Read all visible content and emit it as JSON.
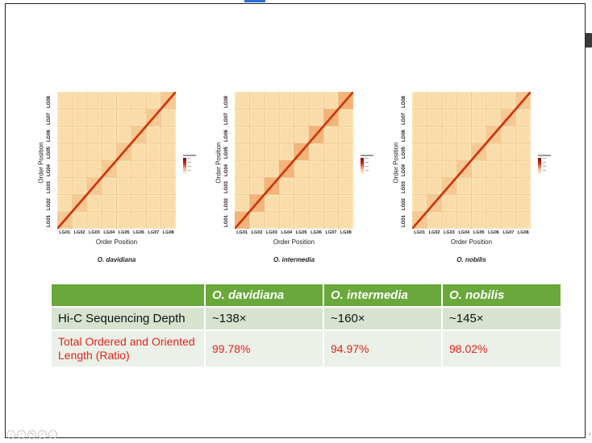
{
  "window": {
    "title": ""
  },
  "panels": [
    {
      "ylabel": "Order Position",
      "xlabel": "Order Position",
      "species": "O. davidiana",
      "ticks": [
        "LG01",
        "LG02",
        "LG03",
        "LG04",
        "LG05",
        "LG06",
        "LG07",
        "LG08"
      ]
    },
    {
      "ylabel": "Order Position",
      "xlabel": "Order Position",
      "species": "O. intermedia",
      "ticks": [
        "LG01",
        "LG02",
        "LG03",
        "LG04",
        "LG05",
        "LG06",
        "LG07",
        "LG08"
      ]
    },
    {
      "ylabel": "Order Position",
      "xlabel": "Order Position",
      "species": "O. nobilis",
      "ticks": [
        "LG01",
        "LG02",
        "LG03",
        "LG04",
        "LG05",
        "LG06",
        "LG07",
        "LG08"
      ]
    }
  ],
  "table": {
    "headers": [
      "",
      "O. davidiana",
      "O. intermedia",
      "O. nobilis"
    ],
    "rows": [
      {
        "label": "Hi-C Sequencing Depth",
        "values": [
          "~138×",
          "~160×",
          "~145×"
        ]
      },
      {
        "label": "Total Ordered and Oriented Length (Ratio)",
        "values": [
          "99.78%",
          "94.97%",
          "98.02%"
        ]
      }
    ]
  },
  "colors": {
    "header_bg": "#69a83a",
    "depth_row_bg": "#d7e3cf",
    "length_row_bg": "#ebf0e8",
    "length_text": "#e3241b",
    "heatmap_background": "#fbe3b3",
    "heatmap_diagonal": "#e0541e"
  },
  "icons": [
    "slide-nav-prev-icon",
    "slide-nav-next-icon",
    "pen-icon",
    "zoom-icon",
    "more-icon"
  ]
}
